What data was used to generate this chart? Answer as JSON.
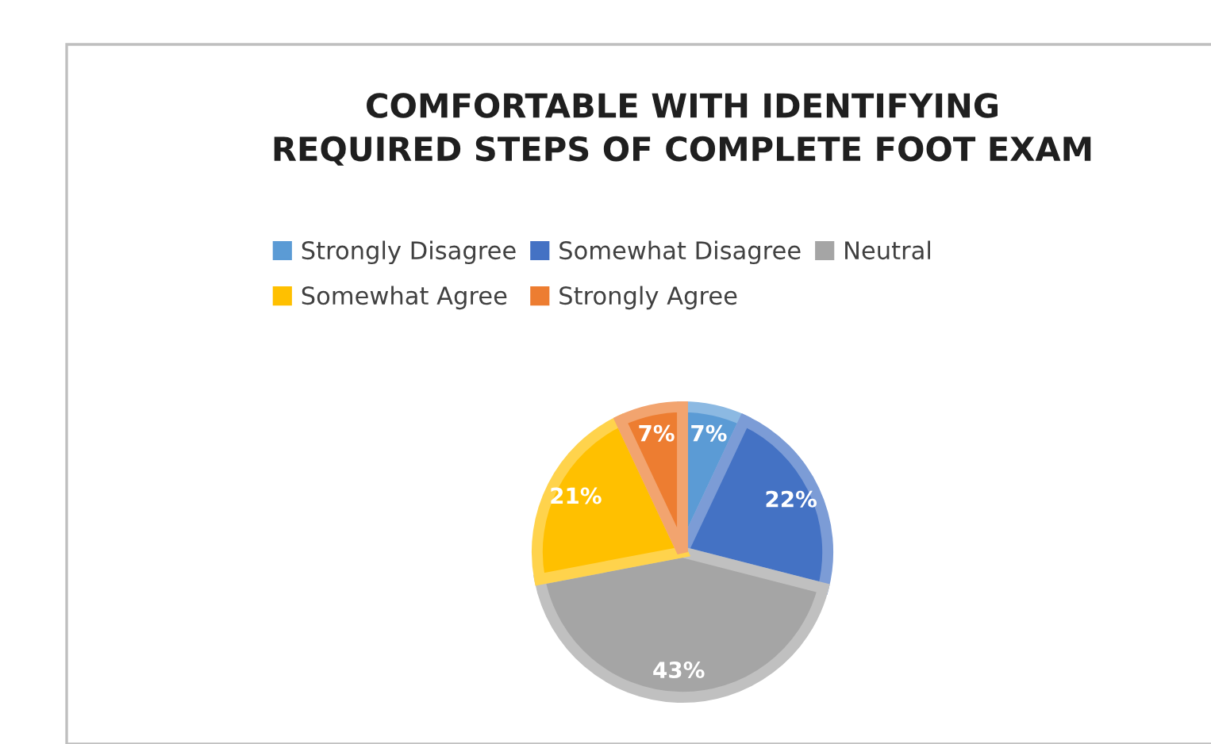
{
  "chart_data": {
    "type": "pie",
    "title": "COMFORTABLE WITH IDENTIFYING\nREQUIRED STEPS OF COMPLETE FOOT EXAM",
    "categories": [
      "Strongly Disagree",
      "Somewhat Disagree",
      "Neutral",
      "Somewhat Agree",
      "Strongly Agree"
    ],
    "values": [
      7,
      22,
      43,
      21,
      7
    ],
    "colors": [
      "#5b9bd5",
      "#4472c4",
      "#a5a5a5",
      "#ffc000",
      "#ed7d31"
    ],
    "value_labels": [
      "7%",
      "22%",
      "43%",
      "21%",
      "7%"
    ],
    "legend": "top"
  }
}
